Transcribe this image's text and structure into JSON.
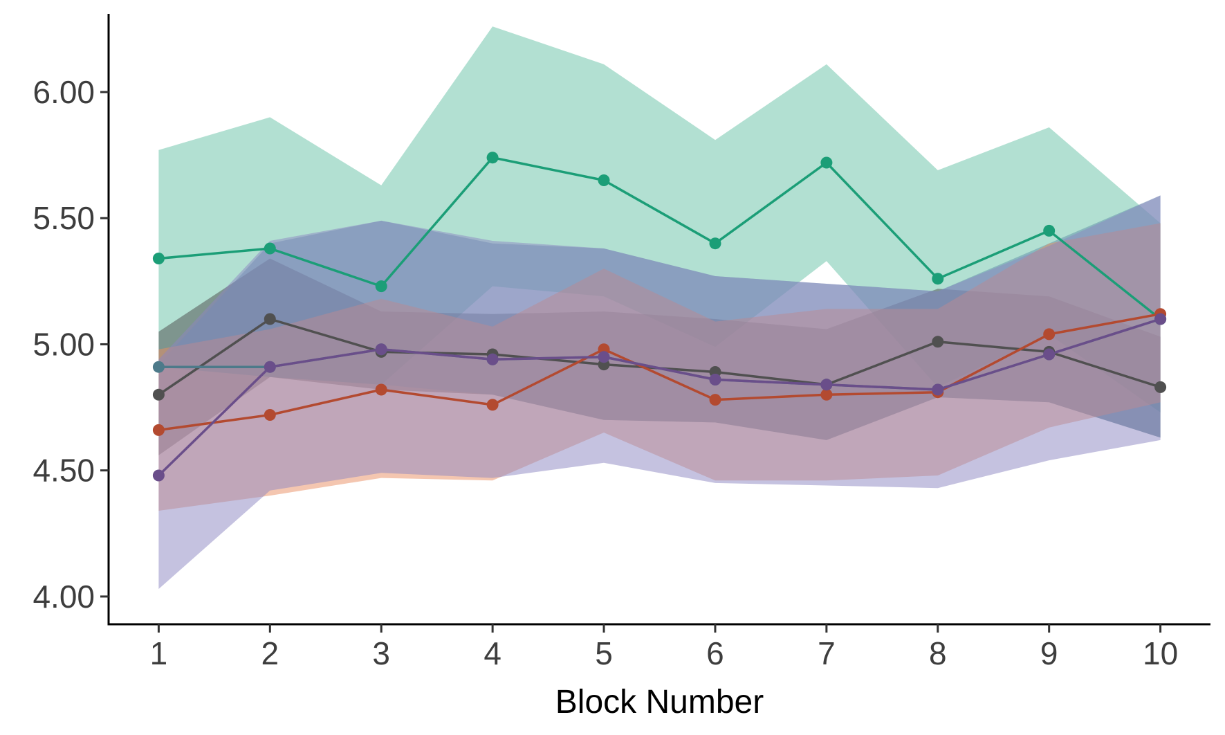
{
  "chart_data": {
    "type": "line",
    "title": "",
    "xlabel": "Block Number",
    "ylabel": "",
    "x": [
      1,
      2,
      3,
      4,
      5,
      6,
      7,
      8,
      9,
      10
    ],
    "xlim": [
      0.55,
      10.45
    ],
    "ylim": [
      3.89,
      6.31
    ],
    "y_ticks": [
      4.0,
      4.5,
      5.0,
      5.5,
      6.0
    ],
    "y_tick_labels": [
      "4.00",
      "4.50",
      "5.00",
      "5.50",
      "6.00"
    ],
    "x_tick_labels": [
      "1",
      "2",
      "3",
      "4",
      "5",
      "6",
      "7",
      "8",
      "9",
      "10"
    ],
    "grid": false,
    "legend": "none",
    "series": [
      {
        "color": "#1b9e77",
        "band_color": "#66c2a5",
        "values": [
          5.34,
          5.38,
          5.23,
          5.74,
          5.65,
          5.4,
          5.72,
          5.26,
          5.45,
          5.1
        ],
        "lower": [
          4.91,
          4.87,
          4.84,
          5.23,
          5.19,
          4.99,
          5.33,
          4.83,
          5.04,
          4.73
        ],
        "upper": [
          5.77,
          5.9,
          5.63,
          6.26,
          6.11,
          5.81,
          6.11,
          5.69,
          5.86,
          5.48
        ]
      },
      {
        "color": "#505050",
        "band_color": "#4a4a4a",
        "values": [
          4.8,
          5.1,
          4.97,
          4.96,
          4.92,
          4.89,
          4.84,
          5.01,
          4.97,
          4.83
        ],
        "lower": [
          4.56,
          4.87,
          4.82,
          4.8,
          4.7,
          4.69,
          4.62,
          4.79,
          4.77,
          4.63
        ],
        "upper": [
          5.05,
          5.34,
          5.13,
          5.12,
          5.13,
          5.1,
          5.06,
          5.22,
          5.19,
          5.03
        ]
      },
      {
        "color": "#4d7a8a",
        "band_color": "#5f8fa8",
        "values": [
          4.91,
          4.91,
          4.98,
          4.94,
          4.95,
          4.86,
          4.84,
          4.82,
          4.96,
          5.1
        ],
        "lower": [
          4.91,
          4.87,
          4.84,
          4.8,
          4.7,
          4.69,
          4.62,
          4.79,
          4.77,
          4.63
        ],
        "upper": [
          4.92,
          5.4,
          5.49,
          5.4,
          5.38,
          5.27,
          5.24,
          5.21,
          5.4,
          5.59
        ]
      },
      {
        "color": "#b34a30",
        "band_color": "#e98e62",
        "values": [
          4.66,
          4.72,
          4.82,
          4.76,
          4.98,
          4.78,
          4.8,
          4.81,
          5.04,
          5.12
        ],
        "lower": [
          4.34,
          4.4,
          4.47,
          4.46,
          4.65,
          4.46,
          4.46,
          4.48,
          4.67,
          4.77
        ],
        "upper": [
          4.98,
          5.06,
          5.18,
          5.07,
          5.3,
          5.09,
          5.14,
          5.14,
          5.4,
          5.48
        ]
      },
      {
        "color": "#6a4e8a",
        "band_color": "#8b86c2",
        "values": [
          4.48,
          4.91,
          4.98,
          4.94,
          4.95,
          4.86,
          4.84,
          4.82,
          4.96,
          5.1
        ],
        "lower": [
          4.03,
          4.42,
          4.49,
          4.47,
          4.53,
          4.45,
          4.44,
          4.43,
          4.54,
          4.62
        ],
        "upper": [
          4.94,
          5.41,
          5.49,
          5.41,
          5.38,
          5.27,
          5.24,
          5.21,
          5.39,
          5.59
        ]
      }
    ]
  }
}
